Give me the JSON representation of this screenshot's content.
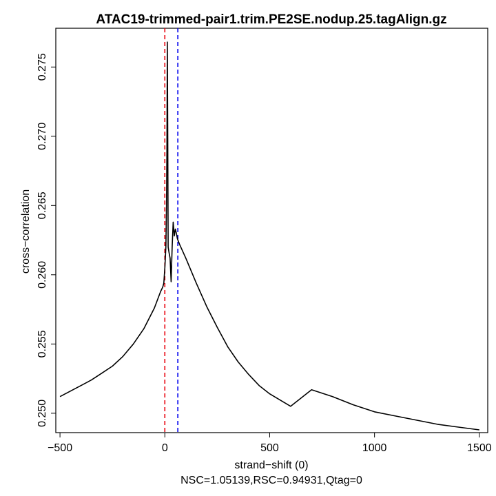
{
  "chart_data": {
    "type": "line",
    "title": "ATAC19-trimmed-pair1.trim.PE2SE.nodup.25.tagAlign.gz",
    "xlabel": "strand−shift (0)",
    "ylabel": "cross−correlation",
    "subtitle": "NSC=1.05139,RSC=0.94931,Qtag=0",
    "xlim": [
      -520,
      1540
    ],
    "ylim": [
      0.2486,
      0.2778
    ],
    "x_ticks": [
      -500,
      0,
      500,
      1000,
      1500
    ],
    "x_tick_labels": [
      "−500",
      "0",
      "500",
      "1000",
      "1500"
    ],
    "y_ticks": [
      0.25,
      0.255,
      0.26,
      0.265,
      0.27,
      0.275
    ],
    "y_tick_labels": [
      "0.250",
      "0.255",
      "0.260",
      "0.265",
      "0.270",
      "0.275"
    ],
    "grid": false,
    "series": [
      {
        "color": "#000000",
        "x": [
          -500,
          -450,
          -400,
          -350,
          -300,
          -250,
          -200,
          -150,
          -100,
          -50,
          -20,
          -10,
          -5,
          0,
          5,
          8,
          10,
          12,
          14,
          16,
          20,
          25,
          30,
          35,
          40,
          45,
          50,
          55,
          60,
          70,
          100,
          150,
          200,
          250,
          300,
          350,
          400,
          450,
          500,
          600,
          700,
          800,
          900,
          1000,
          1100,
          1200,
          1300,
          1400,
          1450,
          1500
        ],
        "y": [
          0.2512,
          0.2516,
          0.252,
          0.2524,
          0.2529,
          0.2534,
          0.2541,
          0.255,
          0.2561,
          0.2576,
          0.2588,
          0.2591,
          0.2594,
          0.2605,
          0.262,
          0.265,
          0.269,
          0.2768,
          0.27,
          0.262,
          0.2616,
          0.2612,
          0.2595,
          0.262,
          0.2638,
          0.2628,
          0.2633,
          0.263,
          0.2626,
          0.2622,
          0.2612,
          0.2594,
          0.2577,
          0.2562,
          0.2548,
          0.2537,
          0.2528,
          0.252,
          0.2514,
          0.2505,
          0.2517,
          0.2512,
          0.2506,
          0.2501,
          0.2498,
          0.2495,
          0.2492,
          0.249,
          0.2489,
          0.2488
        ]
      }
    ],
    "vlines": [
      {
        "x": 0,
        "color": "#e8000b",
        "style": "dashed"
      },
      {
        "x": 62,
        "color": "#0000ee",
        "style": "dashed"
      }
    ]
  }
}
